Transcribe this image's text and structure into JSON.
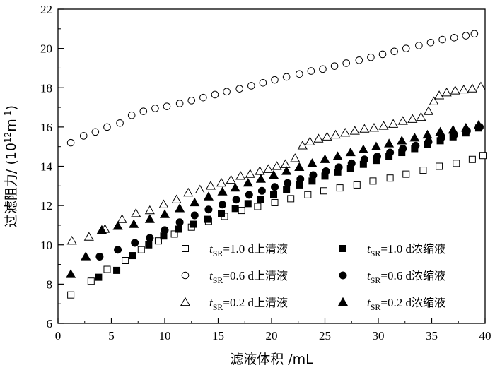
{
  "chart_data": {
    "type": "scatter",
    "title": "",
    "xlabel": "滤液体积 /mL",
    "ylabel": {
      "main": "过滤阻力/ (10",
      "exp1": "12",
      "mid": "m",
      "exp2": "-1",
      "close": ")"
    },
    "xlim": [
      0,
      40
    ],
    "ylim": [
      6,
      22
    ],
    "xticks": [
      "0",
      "5",
      "10",
      "15",
      "20",
      "25",
      "30",
      "35",
      "40"
    ],
    "yticks": [
      "6",
      "8",
      "10",
      "12",
      "14",
      "16",
      "18",
      "20",
      "22"
    ],
    "legend_position": "bottom-right",
    "series": [
      {
        "name": "t_SR=1.0 d上清液",
        "t": "t",
        "sub": "SR",
        "value": "=1.0 d",
        "label": "上清液",
        "marker": "open-square",
        "x": [
          1.2,
          3.1,
          4.6,
          6.3,
          7.8,
          9.4,
          10.9,
          12.5,
          14.1,
          15.6,
          17.2,
          18.7,
          20.3,
          21.8,
          23.4,
          24.9,
          26.4,
          28.0,
          29.5,
          31.1,
          32.6,
          34.2,
          35.7,
          37.3,
          38.8,
          39.8
        ],
        "y": [
          7.45,
          8.15,
          8.75,
          9.2,
          9.75,
          10.2,
          10.55,
          10.9,
          11.2,
          11.45,
          11.75,
          11.95,
          12.15,
          12.35,
          12.55,
          12.75,
          12.9,
          13.05,
          13.25,
          13.4,
          13.6,
          13.8,
          14.0,
          14.15,
          14.35,
          14.55
        ]
      },
      {
        "name": "t_SR=0.6 d上清液",
        "t": "t",
        "sub": "SR",
        "value": "=0.6 d",
        "label": "上清液",
        "marker": "open-circle",
        "x": [
          1.2,
          2.4,
          3.5,
          4.6,
          5.8,
          6.9,
          8.0,
          9.1,
          10.2,
          11.4,
          12.5,
          13.6,
          14.7,
          15.8,
          17.0,
          18.1,
          19.2,
          20.3,
          21.4,
          22.6,
          23.7,
          24.8,
          25.9,
          27.0,
          28.2,
          29.3,
          30.4,
          31.5,
          32.6,
          33.8,
          34.9,
          36.0,
          37.1,
          38.2,
          39.0
        ],
        "y": [
          15.2,
          15.55,
          15.75,
          16.0,
          16.2,
          16.6,
          16.8,
          16.95,
          17.05,
          17.2,
          17.35,
          17.5,
          17.65,
          17.8,
          17.95,
          18.1,
          18.25,
          18.4,
          18.55,
          18.7,
          18.85,
          18.95,
          19.1,
          19.25,
          19.4,
          19.55,
          19.7,
          19.85,
          20.0,
          20.15,
          20.3,
          20.45,
          20.55,
          20.65,
          20.75
        ]
      },
      {
        "name": "t_SR=0.2 d上清液",
        "t": "t",
        "sub": "SR",
        "value": "=0.2 d",
        "label": "上清液",
        "marker": "open-triangle",
        "x": [
          1.3,
          2.9,
          4.4,
          6.0,
          7.3,
          8.6,
          9.9,
          11.1,
          12.2,
          13.3,
          14.3,
          15.3,
          16.2,
          17.1,
          18.0,
          18.9,
          19.7,
          20.5,
          21.3,
          22.2,
          22.9,
          23.6,
          24.4,
          25.2,
          26.0,
          26.9,
          27.8,
          28.7,
          29.6,
          30.5,
          31.4,
          32.3,
          33.2,
          34.0,
          34.7,
          35.2,
          35.7,
          36.4,
          37.2,
          38.0,
          38.8,
          39.6
        ],
        "y": [
          10.2,
          10.4,
          10.8,
          11.3,
          11.6,
          11.75,
          12.05,
          12.3,
          12.65,
          12.8,
          13.0,
          13.15,
          13.3,
          13.5,
          13.6,
          13.75,
          13.85,
          14.0,
          14.1,
          14.4,
          15.05,
          15.25,
          15.4,
          15.5,
          15.6,
          15.7,
          15.8,
          15.9,
          15.95,
          16.05,
          16.15,
          16.3,
          16.4,
          16.5,
          16.8,
          17.3,
          17.6,
          17.75,
          17.85,
          17.9,
          17.95,
          18.05
        ]
      },
      {
        "name": "t_SR=1.0 d浓缩液",
        "t": "t",
        "sub": "SR",
        "value": "=1.0 d",
        "label": "浓缩液",
        "marker": "filled-square",
        "x": [
          3.8,
          5.5,
          7.0,
          8.5,
          9.9,
          11.3,
          12.7,
          14.0,
          15.3,
          16.6,
          17.8,
          19.0,
          20.2,
          21.4,
          22.6,
          23.8,
          25.0,
          26.2,
          27.4,
          28.6,
          29.8,
          31.0,
          32.2,
          33.4,
          34.6,
          35.8,
          37.0,
          38.2,
          39.4
        ],
        "y": [
          8.35,
          8.7,
          9.45,
          10.0,
          10.45,
          10.8,
          11.05,
          11.3,
          11.6,
          11.85,
          12.1,
          12.3,
          12.55,
          12.8,
          13.05,
          13.25,
          13.5,
          13.7,
          13.9,
          14.1,
          14.3,
          14.5,
          14.7,
          14.9,
          15.1,
          15.3,
          15.5,
          15.7,
          15.95
        ]
      },
      {
        "name": "t_SR=0.6 d浓缩液",
        "t": "t",
        "sub": "SR",
        "value": "=0.6 d",
        "label": "浓缩液",
        "marker": "filled-circle",
        "x": [
          3.9,
          5.6,
          7.2,
          8.6,
          10.0,
          11.4,
          12.8,
          14.1,
          15.4,
          16.7,
          17.9,
          19.1,
          20.3,
          21.5,
          22.7,
          23.9,
          25.1,
          26.3,
          27.5,
          28.7,
          29.9,
          31.1,
          32.3,
          33.5,
          34.7,
          35.9,
          37.1,
          38.3,
          39.5
        ],
        "y": [
          9.4,
          9.75,
          10.1,
          10.35,
          10.75,
          11.15,
          11.5,
          11.8,
          12.05,
          12.3,
          12.55,
          12.75,
          12.95,
          13.15,
          13.35,
          13.55,
          13.75,
          13.95,
          14.15,
          14.35,
          14.5,
          14.7,
          14.9,
          15.05,
          15.25,
          15.45,
          15.6,
          15.8,
          16.0
        ]
      },
      {
        "name": "t_SR=0.2 d浓缩液",
        "t": "t",
        "sub": "SR",
        "value": "=0.2 d",
        "label": "浓缩液",
        "marker": "filled-triangle",
        "x": [
          1.2,
          2.6,
          4.1,
          5.6,
          7.1,
          8.6,
          10.0,
          11.4,
          12.8,
          14.1,
          15.4,
          16.6,
          17.8,
          19.0,
          20.2,
          21.4,
          22.6,
          23.8,
          25.0,
          26.2,
          27.4,
          28.6,
          29.8,
          31.0,
          32.2,
          33.4,
          34.6,
          35.8,
          37.0,
          38.2,
          39.4
        ],
        "y": [
          8.5,
          9.4,
          10.75,
          10.95,
          11.05,
          11.3,
          11.55,
          11.85,
          12.15,
          12.45,
          12.7,
          12.9,
          13.15,
          13.35,
          13.55,
          13.75,
          13.95,
          14.15,
          14.35,
          14.5,
          14.7,
          14.85,
          15.0,
          15.15,
          15.3,
          15.45,
          15.6,
          15.75,
          15.85,
          15.95,
          16.1
        ]
      }
    ]
  }
}
